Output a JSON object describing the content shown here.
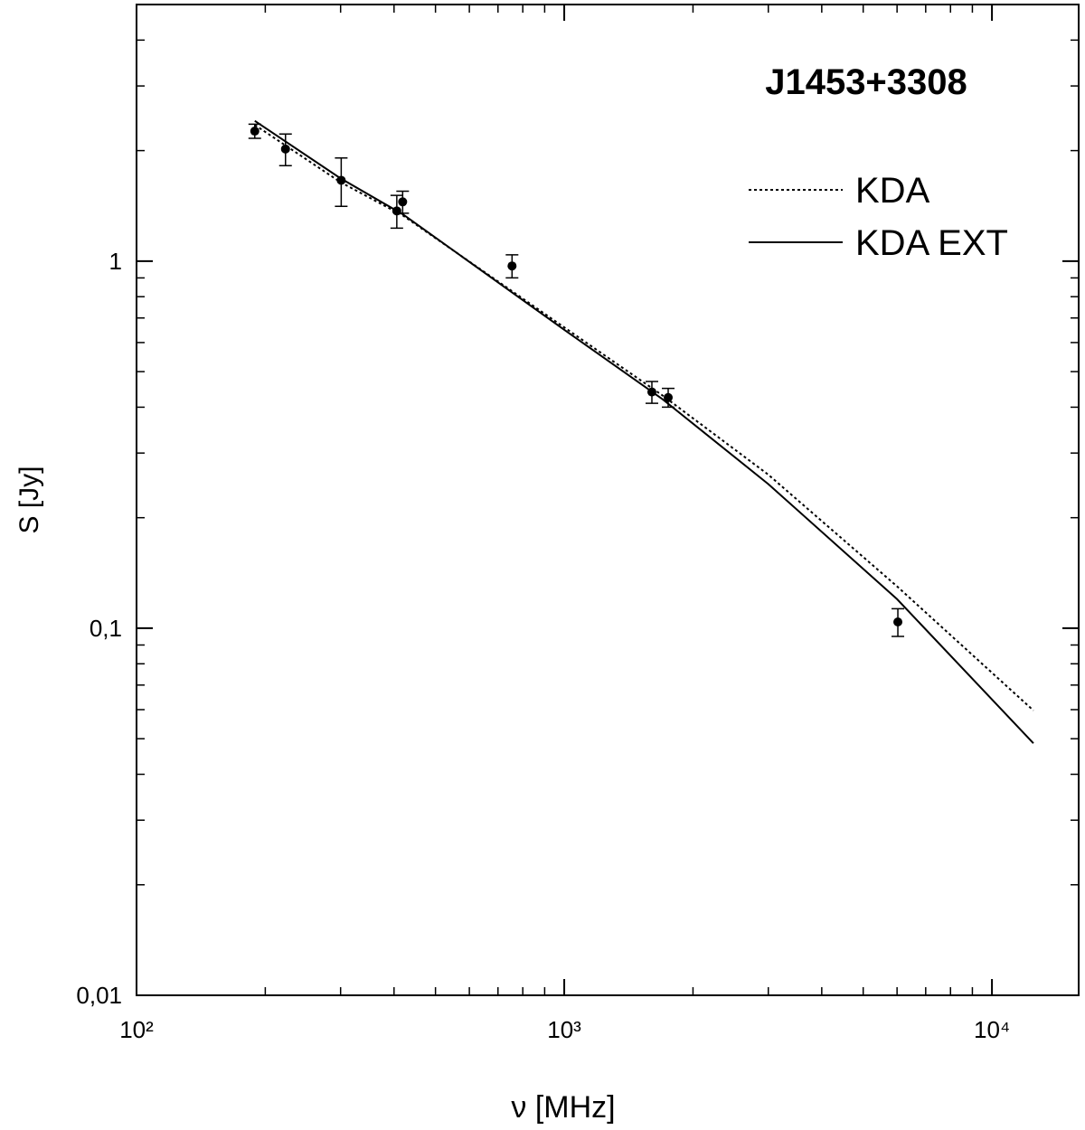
{
  "chart_data": {
    "type": "scatter",
    "title": "J1453+3308",
    "x_label": "ν [MHz]",
    "y_label": "S [Jy]",
    "log_x": true,
    "log_y": true,
    "xlim": [
      100,
      15950
    ],
    "ylim": [
      0.01,
      5
    ],
    "xticks": [
      {
        "value": 100,
        "label": "10²"
      },
      {
        "value": 1000,
        "label": "10³"
      },
      {
        "value": 10000,
        "label": "10⁴"
      }
    ],
    "yticks": [
      {
        "value": 0.01,
        "label": "0,01"
      },
      {
        "value": 0.1,
        "label": "0,1"
      },
      1
    ],
    "points": {
      "x": [
        189,
        223,
        301,
        406,
        419,
        755,
        1603,
        1750,
        6026
      ],
      "values": [
        2.26,
        2.02,
        1.66,
        1.37,
        1.45,
        0.97,
        0.44,
        0.425,
        0.104
      ],
      "errors": [
        0.1,
        0.2,
        0.25,
        0.14,
        0.1,
        0.07,
        0.03,
        0.025,
        0.009
      ],
      "color": "#000000"
    },
    "series": [
      {
        "name": "KDA",
        "style": "dotted",
        "color": "#000000",
        "x": [
          189,
          300,
          420,
          1000,
          1700,
          3000,
          6000,
          12500
        ],
        "values": [
          2.35,
          1.64,
          1.33,
          0.66,
          0.43,
          0.262,
          0.13,
          0.0597
        ]
      },
      {
        "name": "KDA EXT",
        "style": "solid",
        "color": "#000000",
        "x": [
          189,
          300,
          420,
          1000,
          1700,
          3000,
          6000,
          12500
        ],
        "values": [
          2.41,
          1.68,
          1.34,
          0.65,
          0.42,
          0.247,
          0.12,
          0.0486
        ]
      }
    ]
  }
}
